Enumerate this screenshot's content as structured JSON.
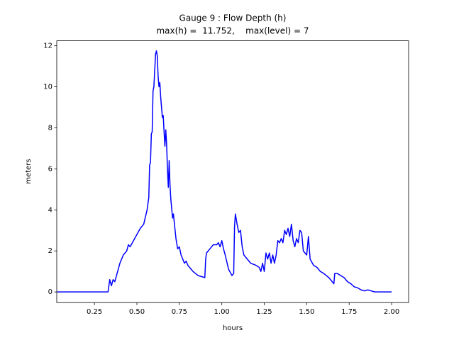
{
  "chart_data": {
    "type": "line",
    "title": "Gauge 9 : Flow Depth (h)",
    "subtitle": "max(h) =  11.752,    max(level) = 7",
    "x_label": "hours",
    "y_label": "meters",
    "xlim": [
      0.028,
      2.1
    ],
    "ylim": [
      -0.52,
      12.24
    ],
    "xticks": [
      0.25,
      {
        "value": 0.5,
        "label": "0.50"
      },
      0.75,
      {
        "value": 1.0,
        "label": "1.00"
      },
      1.25,
      {
        "value": 1.5,
        "label": "1.50"
      },
      1.75,
      {
        "value": 2.0,
        "label": "2.00"
      }
    ],
    "yticks": [
      0,
      2,
      4,
      6,
      8,
      10,
      12
    ],
    "grid": false,
    "series": [
      {
        "color": "#0000ff",
        "x": [
          0.03,
          0.33,
          0.34,
          0.35,
          0.36,
          0.37,
          0.38,
          0.4,
          0.42,
          0.44,
          0.45,
          0.46,
          0.48,
          0.5,
          0.52,
          0.54,
          0.56,
          0.57,
          0.575,
          0.58,
          0.585,
          0.59,
          0.595,
          0.6,
          0.605,
          0.61,
          0.615,
          0.62,
          0.625,
          0.63,
          0.635,
          0.64,
          0.65,
          0.655,
          0.66,
          0.665,
          0.67,
          0.675,
          0.68,
          0.685,
          0.69,
          0.695,
          0.7,
          0.71,
          0.715,
          0.72,
          0.73,
          0.74,
          0.75,
          0.76,
          0.78,
          0.79,
          0.8,
          0.83,
          0.86,
          0.9,
          0.905,
          0.91,
          0.93,
          0.95,
          0.97,
          0.98,
          0.99,
          1.0,
          1.01,
          1.02,
          1.04,
          1.06,
          1.07,
          1.075,
          1.08,
          1.09,
          1.1,
          1.11,
          1.12,
          1.13,
          1.15,
          1.17,
          1.2,
          1.22,
          1.23,
          1.24,
          1.25,
          1.26,
          1.27,
          1.28,
          1.29,
          1.3,
          1.31,
          1.32,
          1.33,
          1.34,
          1.35,
          1.36,
          1.37,
          1.38,
          1.39,
          1.4,
          1.41,
          1.42,
          1.43,
          1.44,
          1.45,
          1.46,
          1.47,
          1.48,
          1.5,
          1.51,
          1.52,
          1.54,
          1.56,
          1.58,
          1.6,
          1.63,
          1.65,
          1.66,
          1.665,
          1.68,
          1.7,
          1.72,
          1.74,
          1.76,
          1.78,
          1.8,
          1.82,
          1.84,
          1.86,
          1.88,
          1.9,
          2.0
        ],
        "values": [
          0,
          0,
          0.6,
          0.3,
          0.6,
          0.5,
          0.8,
          1.4,
          1.8,
          2.0,
          2.3,
          2.2,
          2.5,
          2.8,
          3.1,
          3.3,
          4.0,
          4.6,
          6.2,
          6.3,
          7.7,
          7.8,
          9.8,
          10.0,
          10.8,
          11.6,
          11.75,
          11.5,
          10.5,
          10.0,
          10.2,
          9.5,
          8.5,
          8.6,
          7.8,
          7.1,
          7.9,
          7.2,
          6.0,
          5.1,
          6.4,
          5.2,
          4.5,
          3.6,
          3.8,
          3.4,
          2.6,
          2.1,
          2.2,
          1.8,
          1.4,
          1.5,
          1.3,
          1.0,
          0.8,
          0.7,
          1.6,
          1.9,
          2.1,
          2.3,
          2.3,
          2.4,
          2.2,
          2.5,
          2.1,
          1.8,
          1.1,
          0.8,
          0.9,
          3.2,
          3.8,
          3.3,
          2.9,
          3.0,
          2.2,
          1.8,
          1.6,
          1.4,
          1.3,
          1.2,
          1.0,
          1.4,
          1.0,
          1.9,
          1.6,
          1.9,
          1.4,
          1.8,
          1.4,
          1.8,
          2.5,
          2.4,
          2.6,
          2.4,
          3.0,
          2.8,
          3.1,
          2.7,
          3.3,
          2.5,
          2.2,
          2.6,
          2.4,
          3.0,
          2.9,
          2.0,
          1.8,
          2.7,
          1.6,
          1.3,
          1.2,
          1.0,
          0.9,
          0.7,
          0.5,
          0.4,
          0.9,
          0.9,
          0.8,
          0.7,
          0.5,
          0.4,
          0.25,
          0.2,
          0.1,
          0.05,
          0.1,
          0.05,
          0.0,
          0.0
        ]
      }
    ]
  }
}
